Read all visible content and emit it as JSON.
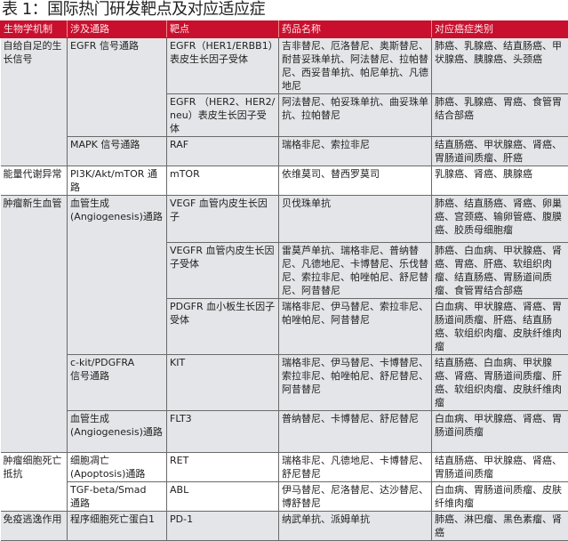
{
  "title": "表 1：国际热门研发靶点及对应适应症",
  "colors": {
    "header_bg": "#c8102e",
    "shaded_row": "#e4e5e8"
  },
  "columns": [
    "生物学机制",
    "涉及通路",
    "靶点",
    "药品名称",
    "对应癌症类别"
  ],
  "rows": [
    {
      "cells": [
        {
          "text": "自给自足的生长信号",
          "rowspan": 3
        },
        {
          "text": "EGFR 信号通路",
          "rowspan": 2
        },
        {
          "text": "EGFR（HER1/ERBB1）表皮生长因子受体"
        },
        {
          "text": "吉非替尼、厄洛替尼、奥斯替尼、耐昔妥珠单抗、阿法替尼、拉帕替尼、西妥昔单抗、帕尼单抗、凡德地尼"
        },
        {
          "text": "肺癌、乳腺癌、结直肠癌、甲状腺癌、胰腺癌、头颈癌"
        }
      ]
    },
    {
      "cells": [
        {
          "text": "EGFR （HER2、HER2/neu）表皮生长因子受体"
        },
        {
          "text": "阿法替尼、帕妥珠单抗、曲妥珠单抗、拉帕替尼"
        },
        {
          "text": "肺癌、乳腺癌、胃癌、食管胃结合部癌"
        }
      ]
    },
    {
      "cells": [
        {
          "text": "MAPK 信号通路"
        },
        {
          "text": "RAF"
        },
        {
          "text": "瑞格非尼、索拉非尼"
        },
        {
          "text": "结直肠癌、甲状腺癌、肾癌、胃肠道间质瘤、肝癌"
        }
      ]
    },
    {
      "cells": [
        {
          "text": "能量代谢异常"
        },
        {
          "text": "PI3K/Akt/mTOR 通路"
        },
        {
          "text": "mTOR"
        },
        {
          "text": "依维莫司、替西罗莫司"
        },
        {
          "text": "乳腺癌、肾癌、胰腺癌"
        }
      ]
    },
    {
      "cells": [
        {
          "text": "肿瘤新生血管",
          "rowspan": 5
        },
        {
          "text": "血管生成\n(Angiogenesis)通路",
          "rowspan": 3
        },
        {
          "text": "VEGF 血管内皮生长因子"
        },
        {
          "text": "贝伐珠单抗"
        },
        {
          "text": "肺癌、结直肠癌、肾癌、卵巢癌、宫颈癌、输卵管癌、腹膜癌、胶质母细胞瘤"
        }
      ]
    },
    {
      "cells": [
        {
          "text": "VEGFR 血管内皮生长因子受体"
        },
        {
          "text": "雷莫芦单抗、瑞格非尼、普纳替尼、凡德地尼、卡博替尼、乐伐替尼、索拉非尼、帕唑帕尼、舒尼替尼、阿昔替尼"
        },
        {
          "text": "肺癌、白血病、甲状腺癌、肾癌、胃癌、肝癌、软组织肉瘤、结直肠癌、胃肠道间质瘤、食管胃结合部癌"
        }
      ]
    },
    {
      "cells": [
        {
          "text": "PDGFR 血小板生长因子受体"
        },
        {
          "text": "瑞格非尼、伊马替尼、索拉非尼、帕唑帕尼、阿昔替尼"
        },
        {
          "text": "白血病、甲状腺癌、肾癌、胃肠道间质瘤、肝癌、结直肠癌、软组织肉瘤、皮肤纤维肉瘤"
        }
      ]
    },
    {
      "cells": [
        {
          "text": "c-kit/PDGFRA\n信号通路"
        },
        {
          "text": "KIT"
        },
        {
          "text": "瑞格非尼、伊马替尼、卡博替尼、索拉非尼、帕唑帕尼、舒尼替尼、阿昔替尼"
        },
        {
          "text": "结直肠癌、白血病、甲状腺癌、肾癌、胃肠道间质瘤、肝癌、软组织肉瘤、皮肤纤维肉瘤"
        }
      ]
    },
    {
      "cells": [
        {
          "text": "血管生成\n(Angiogenesis)通路"
        },
        {
          "text": "FLT3"
        },
        {
          "text": "普纳替尼、卡博替尼、舒尼替尼"
        },
        {
          "text": "白血病、甲状腺癌、肾癌、胃肠道间质瘤"
        }
      ]
    },
    {
      "cells": [
        {
          "text": "肿瘤细胞死亡抵抗",
          "rowspan": 2
        },
        {
          "text": "细胞凋亡\n(Apoptosis)通路"
        },
        {
          "text": "RET"
        },
        {
          "text": "瑞格非尼、凡德地尼、卡博替尼、舒尼替尼"
        },
        {
          "text": "结直肠癌、甲状腺癌、肾癌、胃肠道间质瘤"
        }
      ]
    },
    {
      "cells": [
        {
          "text": "TGF-beta/Smad\n通路"
        },
        {
          "text": "ABL"
        },
        {
          "text": "伊马替尼、尼洛替尼、达沙替尼、博舒替尼"
        },
        {
          "text": "白血病、胃肠道间质瘤、皮肤纤维肉瘤"
        }
      ]
    },
    {
      "cells": [
        {
          "text": "免疫逃逸作用"
        },
        {
          "text": "程序细胞死亡蛋白1"
        },
        {
          "text": "PD-1"
        },
        {
          "text": "纳武单抗、派姆单抗"
        },
        {
          "text": "肺癌、淋巴瘤、黑色素瘤、肾癌"
        }
      ]
    }
  ]
}
